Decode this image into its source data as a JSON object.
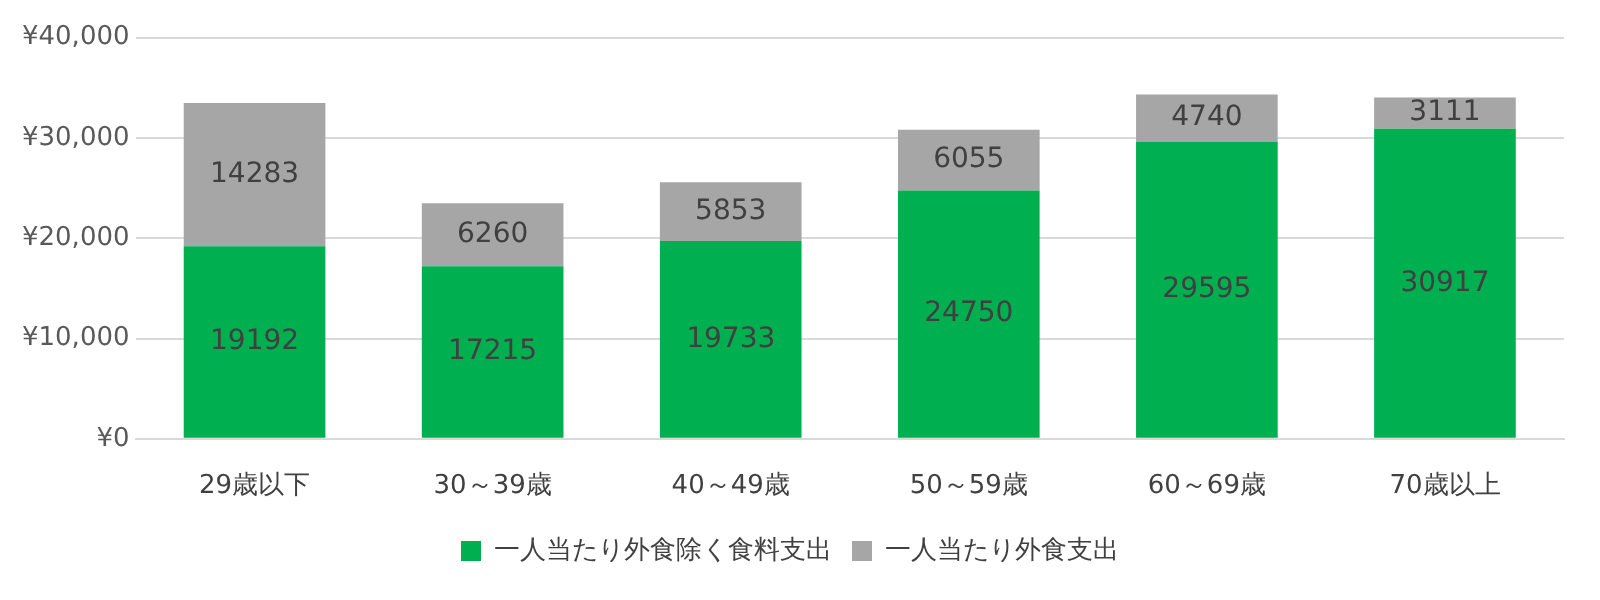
{
  "chart_data": {
    "type": "bar",
    "stacked": true,
    "categories": [
      "29歳以下",
      "30～39歳",
      "40～49歳",
      "50～59歳",
      "60～69歳",
      "70歳以上"
    ],
    "series": [
      {
        "name": "一人当たり外食除く食料支出",
        "color": "#00b050",
        "values": [
          19192,
          17215,
          19733,
          24750,
          29595,
          30917
        ]
      },
      {
        "name": "一人当たり外食支出",
        "color": "#a6a6a6",
        "values": [
          14283,
          6260,
          5853,
          6055,
          4740,
          3111
        ]
      }
    ],
    "ylim": [
      0,
      40000
    ],
    "yticks": [
      {
        "value": 0,
        "label": "¥0"
      },
      {
        "value": 10000,
        "label": "¥10,000"
      },
      {
        "value": 20000,
        "label": "¥20,000"
      },
      {
        "value": 30000,
        "label": "¥30,000"
      },
      {
        "value": 40000,
        "label": "¥40,000"
      }
    ],
    "grid": "y",
    "legend": "bottom",
    "data_labels": true
  }
}
